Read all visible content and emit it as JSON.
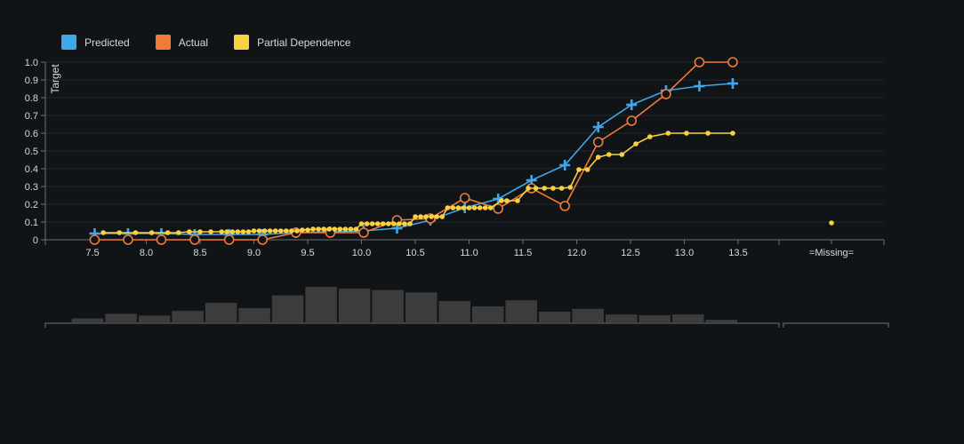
{
  "legend": [
    {
      "label": "Predicted",
      "color": "#3ea6ea"
    },
    {
      "label": "Actual",
      "color": "#f07a3a"
    },
    {
      "label": "Partial Dependence",
      "color": "#f9d13e"
    }
  ],
  "chart_data": {
    "type": "line",
    "ylabel": "Target",
    "xlabel": "",
    "xlim": [
      7.1,
      13.8
    ],
    "ylim": [
      0,
      1.0
    ],
    "y_ticks": [
      "0",
      "0.1",
      "0.2",
      "0.3",
      "0.4",
      "0.5",
      "0.6",
      "0.7",
      "0.8",
      "0.9",
      "1.0"
    ],
    "x_ticks": [
      "7.5",
      "8.0",
      "8.5",
      "9.0",
      "9.5",
      "10.0",
      "10.5",
      "11.0",
      "11.5",
      "12.0",
      "12.5",
      "13.0",
      "13.5"
    ],
    "missing_label": "=Missing=",
    "grid": "horizontal",
    "legend_position": "top-left",
    "series": [
      {
        "name": "Predicted",
        "marker": "plus",
        "x": [
          7.52,
          7.83,
          8.14,
          8.45,
          8.77,
          9.08,
          9.39,
          9.71,
          10.02,
          10.33,
          10.64,
          10.96,
          11.27,
          11.58,
          11.89,
          12.2,
          12.51,
          12.83,
          13.14,
          13.45
        ],
        "y": [
          0.035,
          0.035,
          0.035,
          0.03,
          0.03,
          0.03,
          0.04,
          0.045,
          0.05,
          0.065,
          0.11,
          0.18,
          0.23,
          0.335,
          0.42,
          0.635,
          0.76,
          0.84,
          0.865,
          0.88
        ]
      },
      {
        "name": "Actual",
        "marker": "circle",
        "x": [
          7.52,
          7.83,
          8.14,
          8.45,
          8.77,
          9.08,
          9.39,
          9.71,
          10.02,
          10.33,
          10.64,
          10.96,
          11.27,
          11.58,
          11.89,
          12.2,
          12.51,
          12.83,
          13.14,
          13.45
        ],
        "y": [
          0,
          0,
          0,
          0,
          0,
          0,
          0.04,
          0.04,
          0.04,
          0.11,
          0.12,
          0.235,
          0.175,
          0.29,
          0.19,
          0.55,
          0.67,
          0.82,
          1.0,
          1.0
        ]
      },
      {
        "name": "Partial Dependence",
        "marker": "dot",
        "x": [
          7.6,
          7.75,
          7.9,
          8.05,
          8.2,
          8.3,
          8.4,
          8.5,
          8.6,
          8.7,
          8.75,
          8.8,
          8.85,
          8.9,
          8.95,
          9.0,
          9.05,
          9.1,
          9.15,
          9.2,
          9.25,
          9.3,
          9.35,
          9.4,
          9.45,
          9.5,
          9.55,
          9.6,
          9.65,
          9.7,
          9.75,
          9.8,
          9.85,
          9.9,
          9.95,
          10.0,
          10.05,
          10.1,
          10.15,
          10.2,
          10.25,
          10.3,
          10.35,
          10.4,
          10.45,
          10.5,
          10.55,
          10.6,
          10.65,
          10.7,
          10.75,
          10.8,
          10.85,
          10.9,
          10.95,
          11.0,
          11.05,
          11.1,
          11.15,
          11.2,
          11.3,
          11.35,
          11.45,
          11.55,
          11.62,
          11.7,
          11.78,
          11.86,
          11.94,
          12.02,
          12.1,
          12.2,
          12.3,
          12.42,
          12.55,
          12.68,
          12.85,
          13.02,
          13.22,
          13.45
        ],
        "y": [
          0.04,
          0.04,
          0.04,
          0.04,
          0.04,
          0.04,
          0.045,
          0.045,
          0.045,
          0.045,
          0.045,
          0.045,
          0.045,
          0.045,
          0.045,
          0.05,
          0.05,
          0.05,
          0.05,
          0.05,
          0.05,
          0.05,
          0.05,
          0.05,
          0.055,
          0.055,
          0.06,
          0.06,
          0.06,
          0.06,
          0.06,
          0.06,
          0.06,
          0.06,
          0.06,
          0.09,
          0.09,
          0.09,
          0.09,
          0.09,
          0.09,
          0.09,
          0.09,
          0.09,
          0.09,
          0.13,
          0.13,
          0.13,
          0.13,
          0.13,
          0.13,
          0.18,
          0.18,
          0.18,
          0.18,
          0.18,
          0.18,
          0.18,
          0.18,
          0.18,
          0.22,
          0.22,
          0.22,
          0.29,
          0.29,
          0.29,
          0.29,
          0.29,
          0.295,
          0.395,
          0.395,
          0.465,
          0.48,
          0.48,
          0.54,
          0.58,
          0.6,
          0.6,
          0.6,
          0.6
        ]
      }
    ],
    "missing_point": {
      "series": "Partial Dependence",
      "y": 0.095
    },
    "histogram": {
      "bins": [
        7.3,
        7.61,
        7.92,
        8.23,
        8.54,
        8.85,
        9.16,
        9.47,
        9.78,
        10.09,
        10.4,
        10.71,
        11.02,
        11.33,
        11.64,
        11.95,
        12.26,
        12.57,
        12.88,
        13.19,
        13.5
      ],
      "values": [
        11,
        24,
        19,
        32,
        55,
        40,
        76,
        100,
        95,
        91,
        84,
        60,
        45,
        62,
        30,
        38,
        22,
        20,
        22,
        7
      ]
    },
    "colors": {
      "background": "#111417",
      "grid": "#23272c",
      "axis": "#6b7075",
      "histogram_bar": "#3c3c3c"
    }
  }
}
